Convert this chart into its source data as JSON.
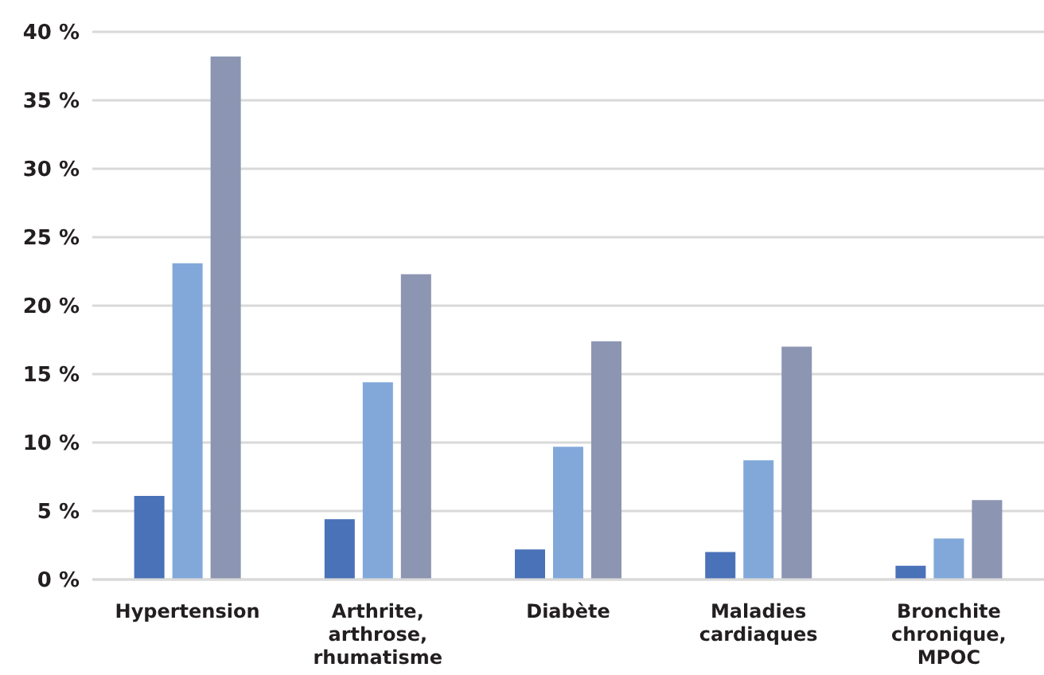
{
  "chart_data": {
    "type": "bar",
    "categories": [
      "Hypertension",
      "Arthrite, arthrose, rhumatisme",
      "Diabète",
      "Maladies cardiaques",
      "Bronchite chronique, MPOC"
    ],
    "series": [
      {
        "color": "#4a72b8",
        "values": [
          6.1,
          4.4,
          2.2,
          2.0,
          1.0
        ]
      },
      {
        "color": "#82a8da",
        "values": [
          23.1,
          14.4,
          9.7,
          8.7,
          3.0
        ]
      },
      {
        "color": "#8c95b2",
        "values": [
          38.2,
          22.3,
          17.4,
          17.0,
          5.8
        ]
      }
    ],
    "ylim": [
      0,
      40
    ],
    "yticks": [
      {
        "value": 0,
        "label": "0 %"
      },
      {
        "value": 5,
        "label": "5 %"
      },
      {
        "value": 10,
        "label": "10 %"
      },
      {
        "value": 15,
        "label": "15 %"
      },
      {
        "value": 20,
        "label": "20 %"
      },
      {
        "value": 25,
        "label": "25 %"
      },
      {
        "value": 30,
        "label": "30 %"
      },
      {
        "value": 35,
        "label": "35 %"
      },
      {
        "value": 40,
        "label": "40 %"
      }
    ],
    "grid": "y",
    "legend": false
  }
}
